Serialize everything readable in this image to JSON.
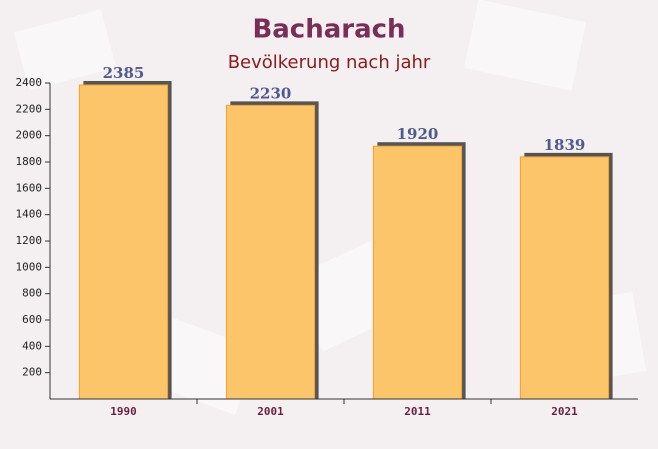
{
  "chart_data": {
    "type": "bar",
    "title": "Bacharach",
    "subtitle": "Bevölkerung nach jahr",
    "categories": [
      "1990",
      "2001",
      "2011",
      "2021"
    ],
    "values": [
      2385,
      2230,
      1920,
      1839
    ],
    "color": "#fdc56a",
    "ylim": [
      0,
      2400
    ],
    "yticks": [
      200,
      400,
      600,
      800,
      1000,
      1200,
      1400,
      1600,
      1800,
      2000,
      2200,
      2400
    ]
  }
}
